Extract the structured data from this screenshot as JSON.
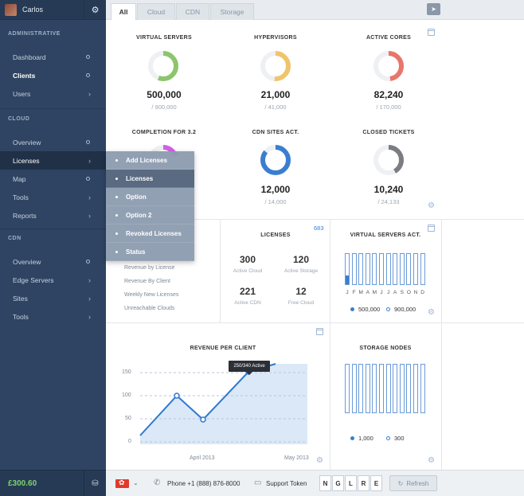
{
  "user": {
    "name": "Carlos"
  },
  "sidebar": {
    "sections": [
      {
        "title": "ADMINISTRATIVE"
      },
      {
        "title": "CLOUD"
      },
      {
        "title": "CDN"
      }
    ],
    "admin_items": [
      "Dashboard",
      "Clients",
      "Users"
    ],
    "cloud_items": [
      "Overview",
      "Licenses",
      "Map",
      "Tools",
      "Reports"
    ],
    "cdn_items": [
      "Overview",
      "Edge Servers",
      "Sites",
      "Tools"
    ],
    "balance": "£300.60"
  },
  "dropdown": [
    "Add Licenses",
    "Licenses",
    "Option",
    "Option 2",
    "Revoked Licenses",
    "Status"
  ],
  "tabs": [
    "All",
    "Cloud",
    "CDN",
    "Storage"
  ],
  "kpis": [
    {
      "label": "VIRTUAL SERVERS",
      "value": "500,000",
      "total": "/ 900,000",
      "color": "#8cc56d",
      "fraction": 0.56
    },
    {
      "label": "HYPERVISORS",
      "value": "21,000",
      "total": "/ 41,000",
      "color": "#f0c56a",
      "fraction": 0.51
    },
    {
      "label": "ACTIVE CORES",
      "value": "82,240",
      "total": "/ 170,000",
      "color": "#e8766a",
      "fraction": 0.48
    },
    {
      "label": "COMPLETION FOR 3.2",
      "value": "",
      "total": "",
      "color": "#d061e6",
      "fraction": 0.2
    },
    {
      "label": "CDN SITES ACT.",
      "value": "12,000",
      "total": "/ 14,000",
      "color": "#3a7ed0",
      "fraction": 0.86
    },
    {
      "label": "CLOSED TICKETS",
      "value": "10,240",
      "total": "/ 24,133",
      "color": "#7a7d82",
      "fraction": 0.42
    }
  ],
  "reports_list": [
    "Revenue by License",
    "Revenue By Client",
    "Weekly New Licenses",
    "Unreachable Clouds"
  ],
  "licenses": {
    "title": "LICENSES",
    "badge": "683",
    "items": [
      {
        "value": "300",
        "label": "Active Cloud"
      },
      {
        "value": "120",
        "label": "Active Storage"
      },
      {
        "value": "221",
        "label": "Active CDN"
      },
      {
        "value": "12",
        "label": "Free Cloud"
      }
    ]
  },
  "vs_act": {
    "title": "VIRTUAL SERVERS ACT.",
    "months": [
      "J",
      "F",
      "M",
      "A",
      "M",
      "J",
      "J",
      "A",
      "S",
      "O",
      "N",
      "D"
    ],
    "fills": [
      0.3,
      0,
      0,
      0,
      0,
      0,
      0,
      0,
      0,
      0,
      0,
      0
    ],
    "legend": [
      {
        "label": "500,000",
        "color": "#3a7ed0"
      },
      {
        "label": "900,000",
        "color": "#ffffff"
      }
    ]
  },
  "revenue": {
    "title": "REVENUE PER CLIENT",
    "yticks": [
      "150",
      "100",
      "50",
      "0"
    ],
    "xlabels": [
      "April 2013",
      "May 2013"
    ],
    "tooltip": "250/340 Active"
  },
  "storage": {
    "title": "STORAGE NODES",
    "legend": [
      {
        "label": "1,000",
        "color": "#3a7ed0"
      },
      {
        "label": "300",
        "color": "#ffffff"
      }
    ]
  },
  "bottom": {
    "phone": "Phone +1 (888) 876-8000",
    "support": "Support Token",
    "token": [
      "N",
      "G",
      "L",
      "R",
      "E"
    ],
    "refresh": "Refresh"
  }
}
